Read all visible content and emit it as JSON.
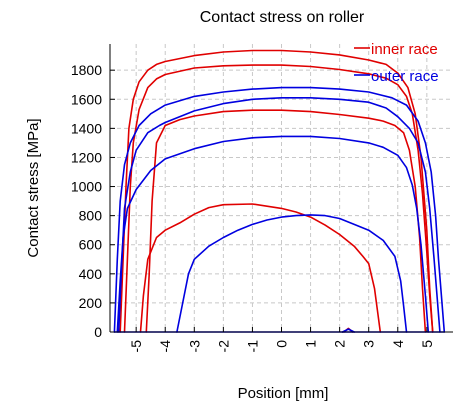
{
  "chart_data": {
    "type": "line",
    "title": "Contact stress on roller",
    "xlabel": "Position [mm]",
    "ylabel": "Contact stress [MPa]",
    "xlim": [
      -5.9,
      5.9
    ],
    "ylim": [
      0,
      1980
    ],
    "xticks": [
      -5,
      -4,
      -3,
      -2,
      -1,
      0,
      1,
      2,
      3,
      4,
      5
    ],
    "xtick_labels": [
      "-5",
      "-4",
      "-3",
      "-2",
      "-1",
      "0",
      "1",
      "2",
      "3",
      "4",
      "5"
    ],
    "yticks": [
      0,
      200,
      400,
      600,
      800,
      1000,
      1200,
      1400,
      1600,
      1800
    ],
    "ytick_labels": [
      "0",
      "200",
      "400",
      "600",
      "800",
      "1000",
      "1200",
      "1400",
      "1600",
      "1800"
    ],
    "grid": true,
    "grid_style": "dashed",
    "legend_position": "top-right",
    "colors": {
      "inner": "#e00000",
      "outer": "#0000e0"
    },
    "legend": [
      {
        "label": "inner race",
        "color": "#e00000"
      },
      {
        "label": "outer race",
        "color": "#0000e0"
      }
    ],
    "series": [
      {
        "group": "inner",
        "x": [
          -5.55,
          -5.45,
          -5.35,
          -5.25,
          -5.1,
          -4.9,
          -4.6,
          -4.3,
          -4.0,
          -3.0,
          -2.0,
          -1.0,
          0.0,
          1.0,
          2.0,
          3.0,
          3.6,
          4.0,
          4.35,
          4.6,
          4.8,
          5.0,
          5.1,
          5.2
        ],
        "y": [
          0,
          500,
          1000,
          1400,
          1600,
          1720,
          1800,
          1840,
          1860,
          1900,
          1925,
          1935,
          1935,
          1925,
          1905,
          1870,
          1840,
          1780,
          1680,
          1500,
          1200,
          700,
          300,
          0
        ]
      },
      {
        "group": "inner",
        "x": [
          -5.4,
          -5.3,
          -5.2,
          -5.1,
          -4.9,
          -4.6,
          -4.3,
          -4.0,
          -3.0,
          -2.0,
          -1.0,
          0.0,
          1.0,
          2.0,
          3.0,
          3.6,
          4.0,
          4.3,
          4.5,
          4.7,
          4.85,
          5.0,
          5.1,
          5.2
        ],
        "y": [
          0,
          500,
          1000,
          1300,
          1530,
          1680,
          1740,
          1770,
          1815,
          1830,
          1835,
          1835,
          1825,
          1805,
          1775,
          1745,
          1700,
          1620,
          1500,
          1250,
          950,
          550,
          250,
          0
        ]
      },
      {
        "group": "inner",
        "x": [
          -4.65,
          -4.55,
          -4.45,
          -4.3,
          -4.0,
          -3.5,
          -3.0,
          -2.0,
          -1.0,
          0.0,
          1.0,
          2.0,
          3.0,
          3.5,
          3.9,
          4.2,
          4.4,
          4.6,
          4.75,
          4.85,
          4.95
        ],
        "y": [
          0,
          400,
          900,
          1300,
          1420,
          1460,
          1485,
          1515,
          1525,
          1525,
          1515,
          1495,
          1470,
          1450,
          1420,
          1370,
          1250,
          1000,
          650,
          300,
          0
        ]
      },
      {
        "group": "inner",
        "x": [
          -4.85,
          -4.75,
          -4.6,
          -4.3,
          -4.0,
          -3.5,
          -3.0,
          -2.5,
          -2.0,
          -1.0,
          0.0,
          0.5,
          1.0,
          1.5,
          2.0,
          2.5,
          2.8,
          3.0,
          3.2,
          3.3,
          3.4
        ],
        "y": [
          0,
          250,
          500,
          650,
          700,
          750,
          810,
          855,
          875,
          880,
          850,
          825,
          790,
          735,
          670,
          590,
          520,
          470,
          300,
          150,
          0
        ]
      },
      {
        "group": "inner",
        "x": [
          2.15,
          2.3,
          2.45
        ],
        "y": [
          0,
          25,
          0
        ]
      },
      {
        "group": "outer",
        "x": [
          -5.75,
          -5.65,
          -5.55,
          -5.4,
          -5.2,
          -4.9,
          -4.5,
          -4.0,
          -3.0,
          -2.0,
          -1.0,
          0.0,
          1.0,
          2.0,
          3.0,
          3.8,
          4.3,
          4.7,
          4.95,
          5.15,
          5.3,
          5.4,
          5.5,
          5.6
        ],
        "y": [
          0,
          500,
          900,
          1150,
          1300,
          1420,
          1500,
          1560,
          1620,
          1650,
          1670,
          1680,
          1680,
          1670,
          1650,
          1610,
          1560,
          1450,
          1300,
          1100,
          800,
          500,
          250,
          0
        ]
      },
      {
        "group": "outer",
        "x": [
          -5.6,
          -5.5,
          -5.4,
          -5.2,
          -5.0,
          -4.6,
          -4.2,
          -4.0,
          -3.0,
          -2.0,
          -1.0,
          0.0,
          1.0,
          2.0,
          3.0,
          3.6,
          4.0,
          4.4,
          4.7,
          4.95,
          5.1,
          5.25,
          5.35,
          5.45
        ],
        "y": [
          0,
          450,
          850,
          1100,
          1250,
          1370,
          1420,
          1440,
          1520,
          1570,
          1600,
          1610,
          1610,
          1600,
          1580,
          1540,
          1480,
          1400,
          1300,
          1100,
          850,
          500,
          250,
          0
        ]
      },
      {
        "group": "outer",
        "x": [
          -5.65,
          -5.55,
          -5.45,
          -5.3,
          -5.0,
          -4.5,
          -4.0,
          -3.0,
          -2.0,
          -1.0,
          0.0,
          1.0,
          2.0,
          3.0,
          3.5,
          4.0,
          4.3,
          4.5,
          4.65,
          4.8,
          4.95,
          5.05
        ],
        "y": [
          0,
          350,
          650,
          850,
          980,
          1110,
          1190,
          1260,
          1310,
          1335,
          1345,
          1345,
          1330,
          1300,
          1270,
          1215,
          1130,
          1010,
          850,
          600,
          250,
          0
        ]
      },
      {
        "group": "outer",
        "x": [
          -3.6,
          -3.4,
          -3.2,
          -3.0,
          -2.5,
          -2.0,
          -1.5,
          -1.0,
          -0.5,
          0.0,
          0.5,
          1.0,
          1.5,
          2.0,
          2.5,
          3.0,
          3.5,
          3.9,
          4.1,
          4.2,
          4.3
        ],
        "y": [
          0,
          200,
          400,
          500,
          590,
          650,
          700,
          740,
          770,
          790,
          800,
          805,
          800,
          780,
          740,
          700,
          630,
          520,
          350,
          180,
          0
        ]
      },
      {
        "group": "outer",
        "x": [
          -5.75,
          5.6
        ],
        "y": [
          0,
          0
        ]
      },
      {
        "group": "outer",
        "x": [
          2.1,
          2.3,
          2.5
        ],
        "y": [
          0,
          20,
          0
        ]
      }
    ]
  }
}
